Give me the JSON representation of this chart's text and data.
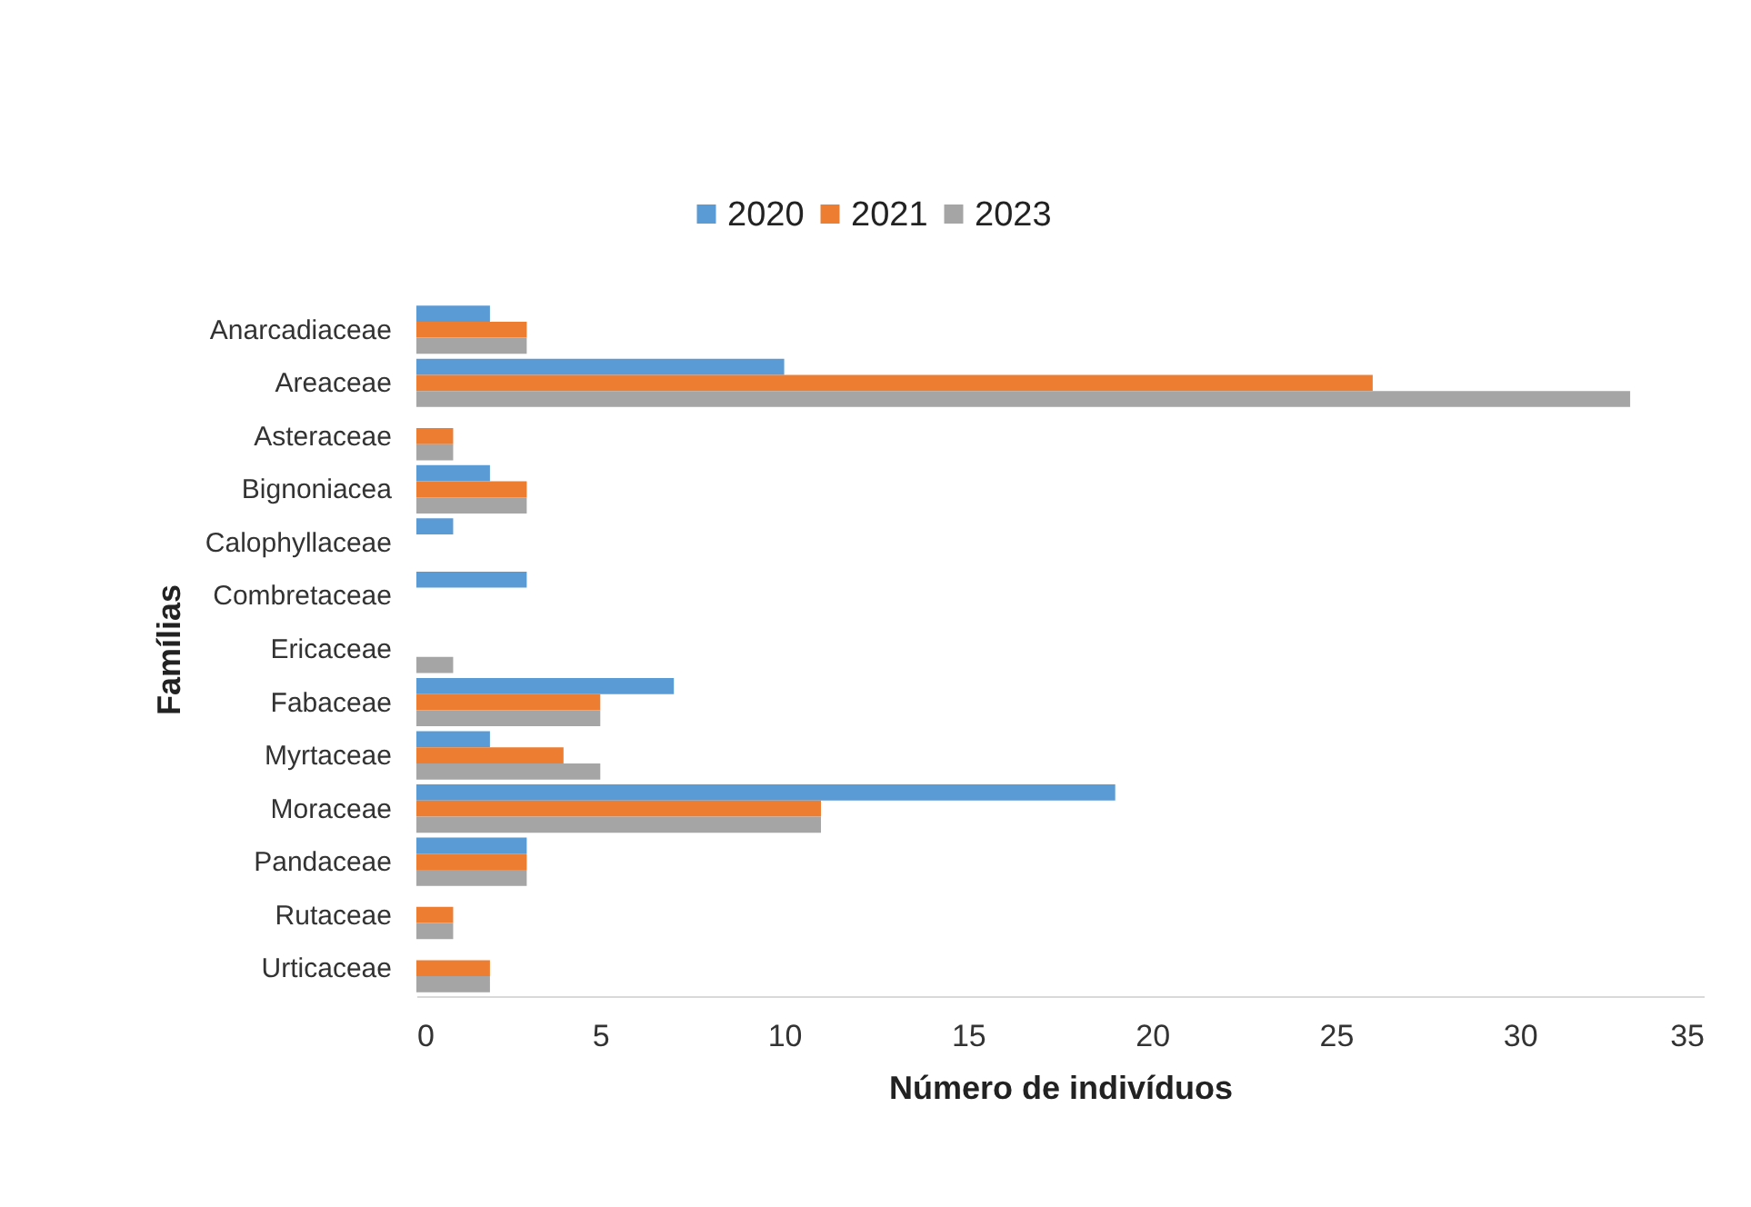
{
  "chart_data": {
    "type": "bar",
    "orientation": "horizontal",
    "xlabel": "Número de indivíduos",
    "ylabel": "Famílias",
    "categories": [
      "Anarcadiaceae",
      "Areaceae",
      "Asteraceae",
      "Bignoniacea",
      "Calophyllaceae",
      "Combretaceae",
      "Ericaceae",
      "Fabaceae",
      "Myrtaceae",
      "Moraceae",
      "Pandaceae",
      "Rutaceae",
      "Urticaceae"
    ],
    "series": [
      {
        "name": "2020",
        "color": "#5b9bd5",
        "values": [
          2,
          10,
          0,
          2,
          1,
          3,
          0,
          7,
          2,
          19,
          3,
          0,
          0
        ]
      },
      {
        "name": "2021",
        "color": "#ed7d31",
        "values": [
          3,
          26,
          1,
          3,
          0,
          0,
          0,
          5,
          4,
          11,
          3,
          1,
          2
        ]
      },
      {
        "name": "2023",
        "color": "#a5a5a5",
        "values": [
          3,
          33,
          1,
          3,
          0,
          0,
          1,
          5,
          5,
          11,
          3,
          1,
          2
        ]
      }
    ],
    "xlim": [
      0,
      35
    ],
    "xticks": [
      0,
      5,
      10,
      15,
      20,
      25,
      30,
      35
    ],
    "grid": false,
    "legend": "top"
  }
}
